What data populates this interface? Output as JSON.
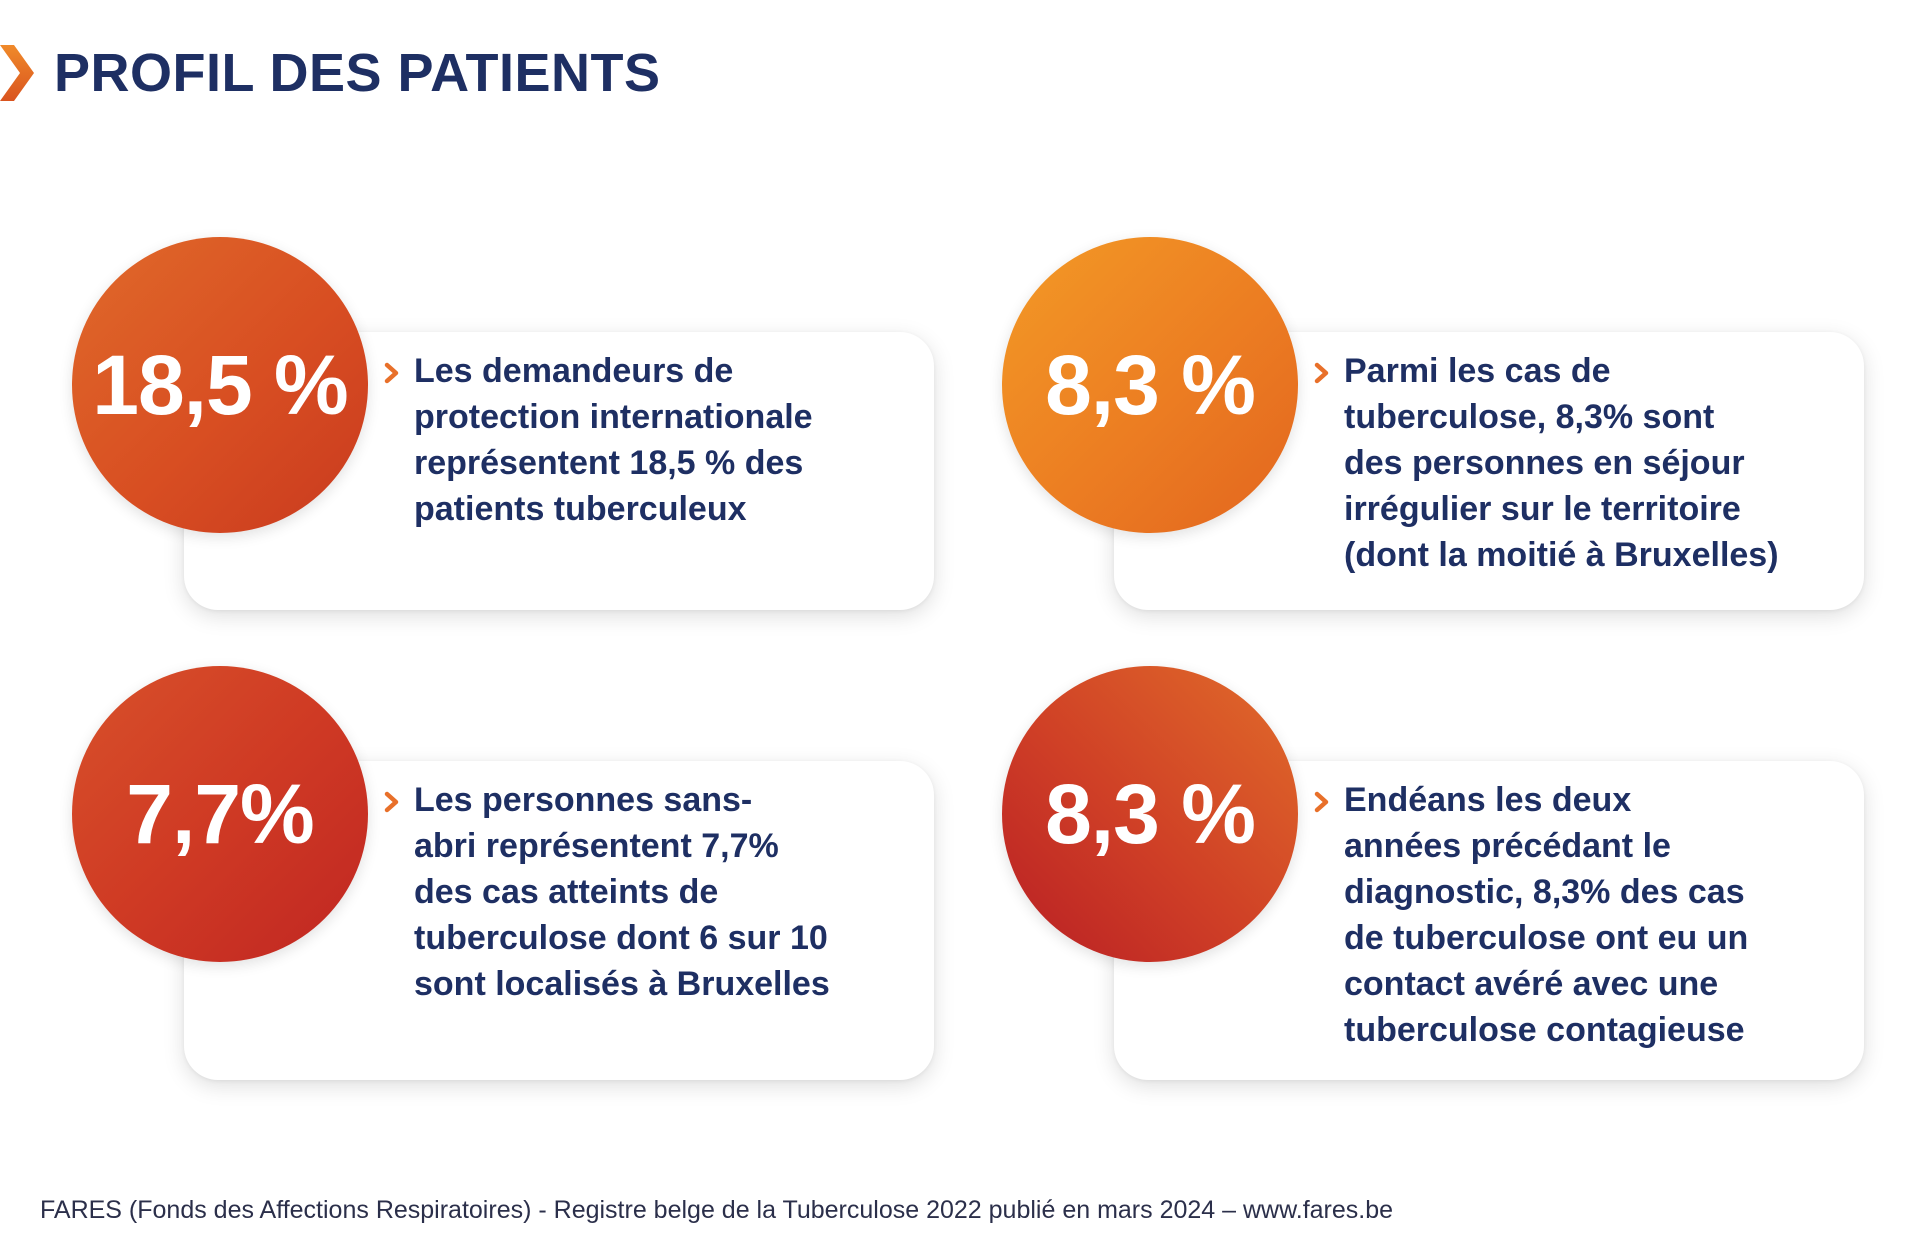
{
  "header": {
    "title": "PROFIL DES PATIENTS",
    "icon": "chevron-right-icon"
  },
  "stats": [
    {
      "value": "18,5 %",
      "lines": [
        "Les demandeurs de",
        "protection internationale",
        "représentent 18,5 % des",
        "patients tuberculeux"
      ],
      "color": "#d84e22"
    },
    {
      "value": "8,3 %",
      "lines": [
        "Parmi les cas de",
        "tuberculose, 8,3% sont",
        "des personnes en séjour",
        "irrégulier sur le territoire",
        "(dont la moitié à Bruxelles)"
      ],
      "color": "#ec7d22"
    },
    {
      "value": "7,7%",
      "lines": [
        "Les personnes sans-",
        "abri représentent 7,7%",
        "des cas atteints de",
        "tuberculose dont 6 sur 10",
        "sont localisés à Bruxelles"
      ],
      "color": "#cf3a24"
    },
    {
      "value": "8,3 %",
      "lines": [
        "Endéans les deux",
        "années précédant le",
        "diagnostic, 8,3% des cas",
        "de tuberculose ont eu un",
        "contact avéré avec une",
        "tuberculose contagieuse"
      ],
      "color": "#cf3f26"
    }
  ],
  "colors": {
    "title": "#1e2f63",
    "accent_orange": "#e8702a"
  },
  "footer": {
    "text": "FARES (Fonds des Affections Respiratoires) - Registre belge de la Tuberculose 2022 publié en mars 2024 – www.fares.be"
  }
}
